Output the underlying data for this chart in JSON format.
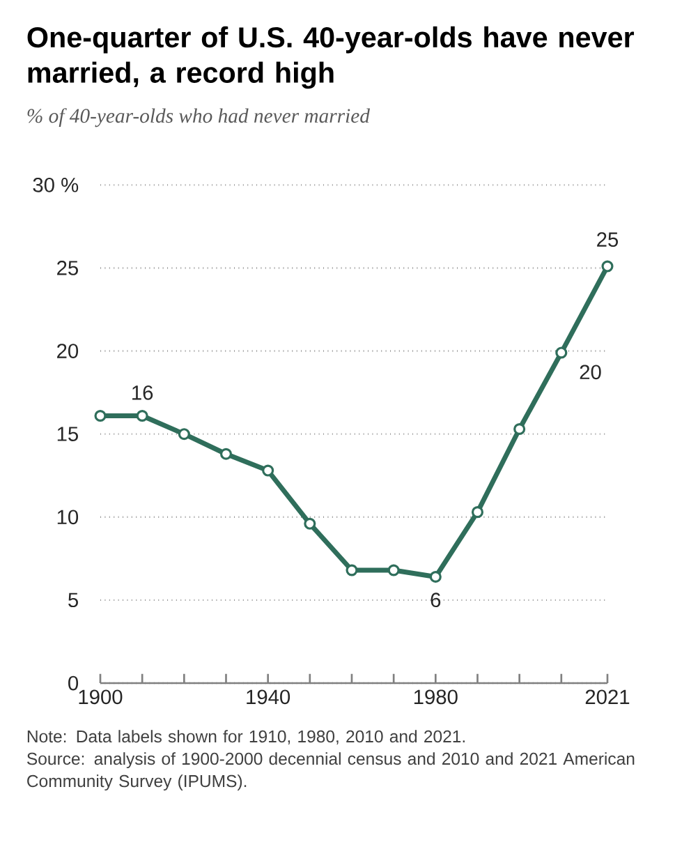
{
  "chart_data": {
    "type": "line",
    "title": "One-quarter of U.S. 40-year-olds have never married, a record high",
    "subtitle": "% of 40-year-olds who had never married",
    "x": [
      1900,
      1910,
      1920,
      1930,
      1940,
      1950,
      1960,
      1970,
      1980,
      1990,
      2000,
      2010,
      2021
    ],
    "series": [
      {
        "color": "#2f6e5b",
        "values": [
          16.1,
          16.1,
          15.0,
          13.8,
          12.8,
          9.6,
          6.8,
          6.8,
          6.4,
          10.3,
          15.3,
          19.9,
          25.1
        ],
        "value_labels": [
          null,
          "16",
          null,
          null,
          null,
          null,
          null,
          null,
          "6",
          null,
          null,
          "20",
          "25"
        ]
      }
    ],
    "xlim": [
      1900,
      2021
    ],
    "xticks": [
      1900,
      {
        "value": 1910,
        "label": null
      },
      {
        "value": 1920,
        "label": null
      },
      {
        "value": 1930,
        "label": null
      },
      1940,
      {
        "value": 1950,
        "label": null
      },
      {
        "value": 1960,
        "label": null
      },
      {
        "value": 1970,
        "label": null
      },
      1980,
      {
        "value": 1990,
        "label": null
      },
      {
        "value": 2000,
        "label": null
      },
      {
        "value": 2010,
        "label": null
      },
      2021
    ],
    "ylim": [
      0,
      30
    ],
    "yticks": [
      0,
      5,
      10,
      15,
      20,
      25,
      {
        "value": 30,
        "label": "30 %"
      }
    ],
    "grid": "y",
    "marker": "circle",
    "line_style": "solid",
    "annotations": [
      "Note: Data labels shown for 1910, 1980, 2010 and 2021.",
      "Source: analysis of 1900-2000 decennial census and 2010 and 2021 American Community Survey (IPUMS)."
    ]
  }
}
